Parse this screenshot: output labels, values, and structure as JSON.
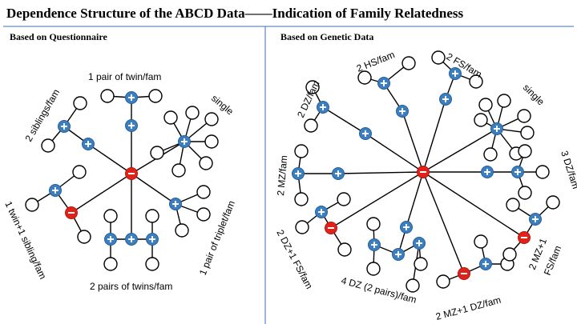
{
  "title": "Dependence Structure of the ABCD Data——Indication of Family Relatedness",
  "panels": {
    "left_heading": "Based on Questionnaire",
    "right_heading": "Based on Genetic Data"
  },
  "left_labels": {
    "twin_pair": "1 pair of twin/fam",
    "siblings": "2 siblings/fam",
    "single": "single",
    "twin_sibling": "1 twin+1 sibling/fam",
    "triplet": "1 pair of triplet/fam",
    "two_pairs_twins": "2 pairs of twins/fam"
  },
  "right_labels": {
    "hs": "2 HS/fam",
    "fs": "2 FS/fam",
    "dz": "2 DZ/fam",
    "single": "single",
    "three_dz": "3 DZ/fam",
    "mz": "2 MZ/fam",
    "dz_fs": "2 DZ+1 FS/fam",
    "four_dz": "4 DZ (2 pairs)/fam",
    "mz_dz": "2 MZ+1 DZ/fam",
    "mz_fs_line1": "2 MZ+1",
    "mz_fs_line2": "FS/fam"
  },
  "colors": {
    "plus_node": "#3a7fc1",
    "minus_node": "#e0231a",
    "edge": "#000000",
    "divider": "#3a6fb0"
  }
}
